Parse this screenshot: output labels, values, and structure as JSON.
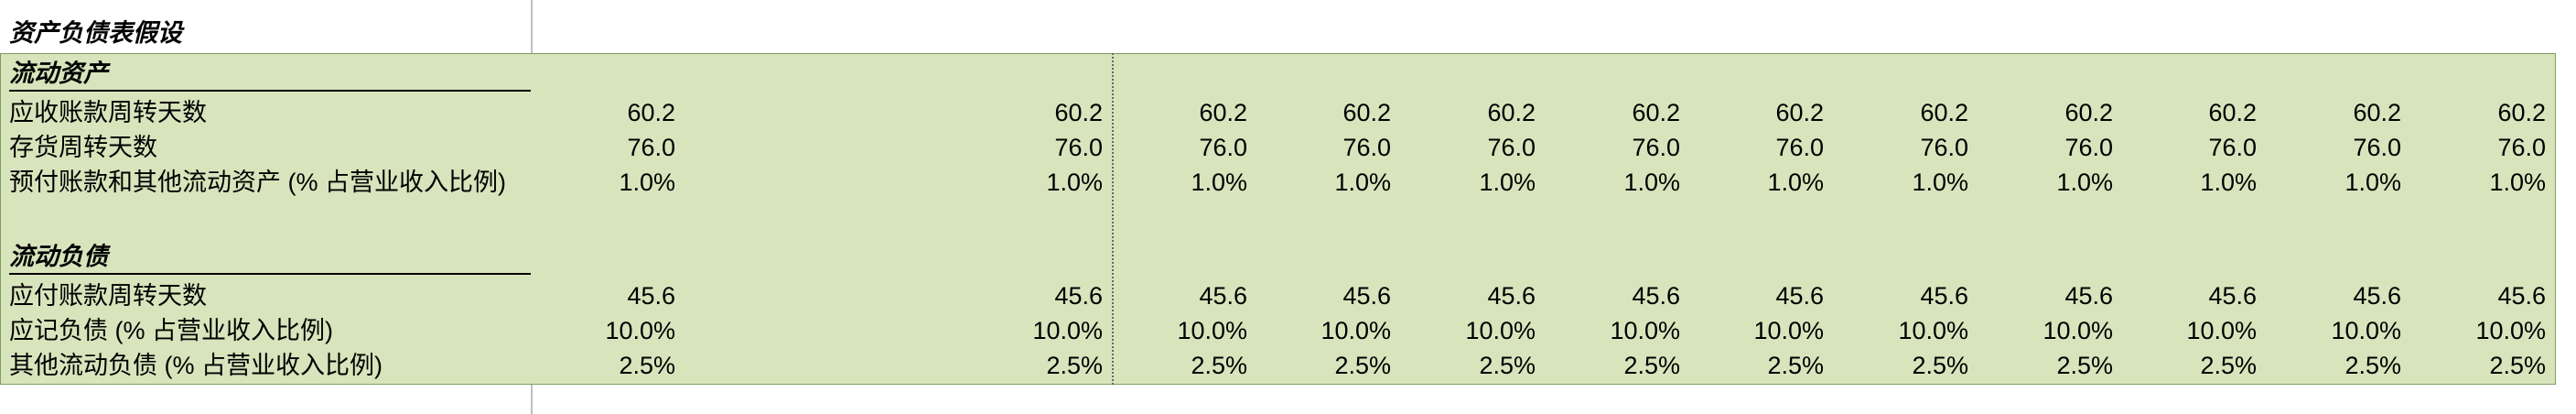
{
  "sheet": {
    "section_title": "资产负债表假设",
    "groups": [
      {
        "title": "流动资产",
        "rows": [
          {
            "label": "应收账款周转天数",
            "values": [
              "60.2",
              "60.2",
              "60.2",
              "60.2",
              "60.2",
              "60.2",
              "60.2",
              "60.2",
              "60.2",
              "60.2",
              "60.2",
              "60.2"
            ]
          },
          {
            "label": "存货周转天数",
            "values": [
              "76.0",
              "76.0",
              "76.0",
              "76.0",
              "76.0",
              "76.0",
              "76.0",
              "76.0",
              "76.0",
              "76.0",
              "76.0",
              "76.0"
            ]
          },
          {
            "label": "预付账款和其他流动资产 (% 占营业收入比例)",
            "values": [
              "1.0%",
              "1.0%",
              "1.0%",
              "1.0%",
              "1.0%",
              "1.0%",
              "1.0%",
              "1.0%",
              "1.0%",
              "1.0%",
              "1.0%",
              "1.0%"
            ]
          }
        ]
      },
      {
        "title": "流动负债",
        "rows": [
          {
            "label": "应付账款周转天数",
            "values": [
              "45.6",
              "45.6",
              "45.6",
              "45.6",
              "45.6",
              "45.6",
              "45.6",
              "45.6",
              "45.6",
              "45.6",
              "45.6",
              "45.6"
            ]
          },
          {
            "label": "应记负债 (% 占营业收入比例)",
            "values": [
              "10.0%",
              "10.0%",
              "10.0%",
              "10.0%",
              "10.0%",
              "10.0%",
              "10.0%",
              "10.0%",
              "10.0%",
              "10.0%",
              "10.0%",
              "10.0%"
            ]
          },
          {
            "label": "其他流动负债 (% 占营业收入比例)",
            "values": [
              "2.5%",
              "2.5%",
              "2.5%",
              "2.5%",
              "2.5%",
              "2.5%",
              "2.5%",
              "2.5%",
              "2.5%",
              "2.5%",
              "2.5%",
              "2.5%"
            ]
          }
        ]
      }
    ],
    "colors": {
      "fill": "#d8e4bc",
      "border": "#7f9f5f"
    }
  }
}
